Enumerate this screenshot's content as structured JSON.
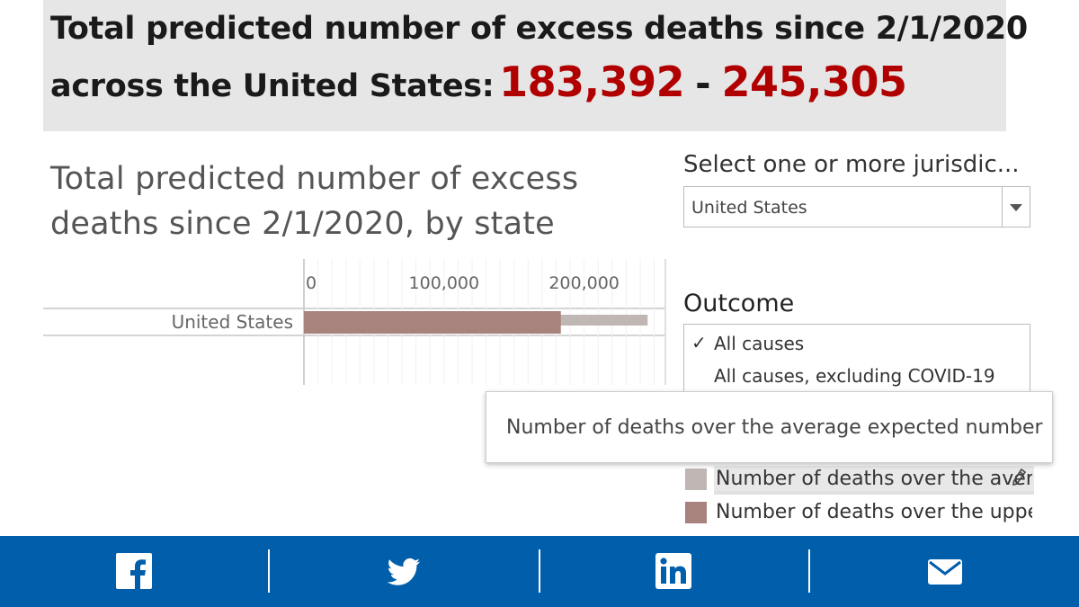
{
  "banner": {
    "line1": "Total predicted number of excess deaths since 2/1/2020",
    "line2_lead": "across the United States:",
    "range_low": "183,392",
    "range_sep": "-",
    "range_high": "245,305"
  },
  "chart_title": "Total predicted number of excess deaths since 2/1/2020, by state",
  "chart_data": {
    "type": "bar",
    "orientation": "horizontal",
    "categories": [
      "United States"
    ],
    "series": [
      {
        "name": "Number of deaths over the average expected number",
        "values": [
          245305
        ],
        "color": "#c0b6b3"
      },
      {
        "name": "Number of deaths over the upper...",
        "values": [
          183392
        ],
        "color": "#a8827d"
      }
    ],
    "x_ticks": [
      {
        "value": 0,
        "label": "0"
      },
      {
        "value": 100000,
        "label": "100,000"
      },
      {
        "value": 200000,
        "label": "200,000"
      }
    ],
    "xlim": [
      0,
      258000
    ]
  },
  "jurisdiction_filter": {
    "label": "Select one or more jurisdic...",
    "value": "United States"
  },
  "outcome_filter": {
    "label": "Outcome",
    "check_mark": "✓",
    "options": [
      "All causes",
      "All causes, excluding COVID-19"
    ]
  },
  "tooltip": {
    "text": "Number of deaths over the average expected number"
  },
  "legend": {
    "items": [
      {
        "label": "Number of deaths over the avera",
        "color": "#c0b6b3"
      },
      {
        "label": "Number of deaths over the upper...",
        "color": "#a8827d"
      }
    ]
  },
  "share": {
    "bg_color": "#005eaa",
    "icons": [
      "facebook-icon",
      "twitter-icon",
      "linkedin-icon",
      "email-icon"
    ]
  }
}
